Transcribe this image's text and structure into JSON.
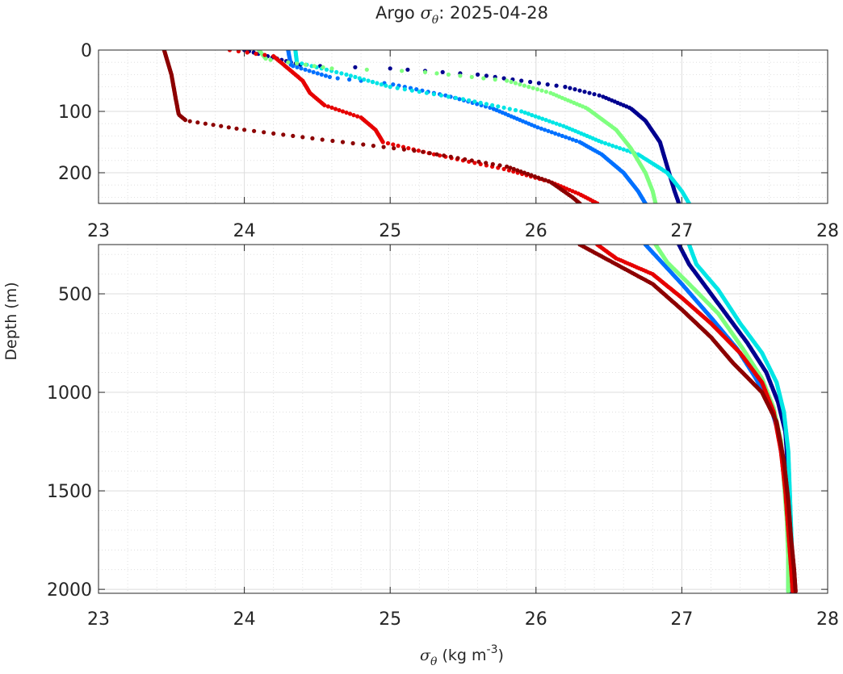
{
  "chart_data": {
    "type": "scatter",
    "title": {
      "prefix": "Argo ",
      "symbol": "σ",
      "symbol_sub": "θ",
      "suffix": ": 2025-04-28"
    },
    "xlabel": {
      "symbol": "σ",
      "symbol_sub": "θ",
      "units_pre": " (kg m",
      "units_sup": "-3",
      "units_post": ")"
    },
    "ylabel": "Depth (m)",
    "xlim": [
      23,
      28
    ],
    "x_ticks": [
      23,
      24,
      25,
      26,
      27,
      28
    ],
    "x_tick_labels": [
      "23",
      "24",
      "25",
      "26",
      "27",
      "28"
    ],
    "grid": true,
    "minor_grid": true,
    "panels": [
      {
        "name": "upper",
        "ylim": [
          0,
          250
        ],
        "y_reversed": true,
        "y_ticks": [
          0,
          100,
          200
        ],
        "y_tick_labels": [
          "0",
          "100",
          "200"
        ]
      },
      {
        "name": "lower",
        "ylim": [
          250,
          2020
        ],
        "y_reversed": true,
        "y_ticks": [
          500,
          1000,
          1500,
          2000
        ],
        "y_tick_labels": [
          "500",
          "1000",
          "1500",
          "2000"
        ]
      }
    ],
    "series": [
      {
        "color": "#00008f",
        "points": [
          [
            24.0,
            0
          ],
          [
            24.4,
            25
          ],
          [
            25.0,
            30
          ],
          [
            25.6,
            40
          ],
          [
            26.2,
            60
          ],
          [
            26.45,
            75
          ],
          [
            26.65,
            95
          ],
          [
            26.75,
            115
          ],
          [
            26.85,
            150
          ],
          [
            26.9,
            190
          ],
          [
            26.95,
            230
          ],
          [
            26.98,
            250
          ],
          [
            27.05,
            350
          ],
          [
            27.15,
            450
          ],
          [
            27.3,
            600
          ],
          [
            27.45,
            750
          ],
          [
            27.58,
            900
          ],
          [
            27.66,
            1050
          ],
          [
            27.71,
            1200
          ],
          [
            27.73,
            1400
          ],
          [
            27.74,
            1600
          ],
          [
            27.75,
            1800
          ],
          [
            27.75,
            2010
          ]
        ]
      },
      {
        "color": "#0070ff",
        "points": [
          [
            24.3,
            0
          ],
          [
            24.32,
            25
          ],
          [
            24.6,
            45
          ],
          [
            25.0,
            55
          ],
          [
            25.4,
            75
          ],
          [
            25.7,
            95
          ],
          [
            26.0,
            125
          ],
          [
            26.3,
            150
          ],
          [
            26.45,
            170
          ],
          [
            26.6,
            200
          ],
          [
            26.7,
            230
          ],
          [
            26.75,
            250
          ],
          [
            26.85,
            330
          ],
          [
            27.0,
            450
          ],
          [
            27.2,
            620
          ],
          [
            27.38,
            780
          ],
          [
            27.5,
            920
          ],
          [
            27.6,
            1050
          ],
          [
            27.66,
            1200
          ],
          [
            27.7,
            1400
          ],
          [
            27.72,
            1600
          ],
          [
            27.73,
            1800
          ],
          [
            27.73,
            2010
          ]
        ]
      },
      {
        "color": "#00e5e5",
        "points": [
          [
            24.35,
            0
          ],
          [
            24.36,
            20
          ],
          [
            24.7,
            40
          ],
          [
            25.0,
            60
          ],
          [
            25.5,
            80
          ],
          [
            25.9,
            100
          ],
          [
            26.2,
            125
          ],
          [
            26.45,
            150
          ],
          [
            26.7,
            170
          ],
          [
            26.9,
            200
          ],
          [
            27.0,
            230
          ],
          [
            27.05,
            250
          ],
          [
            27.1,
            350
          ],
          [
            27.25,
            480
          ],
          [
            27.4,
            650
          ],
          [
            27.55,
            800
          ],
          [
            27.65,
            950
          ],
          [
            27.7,
            1100
          ],
          [
            27.73,
            1300
          ],
          [
            27.74,
            1500
          ],
          [
            27.75,
            1700
          ],
          [
            27.76,
            1900
          ],
          [
            27.76,
            2010
          ]
        ]
      },
      {
        "color": "#7fff7f",
        "points": [
          [
            24.1,
            0
          ],
          [
            24.15,
            15
          ],
          [
            24.6,
            30
          ],
          [
            25.2,
            35
          ],
          [
            25.8,
            50
          ],
          [
            26.1,
            70
          ],
          [
            26.35,
            95
          ],
          [
            26.55,
            130
          ],
          [
            26.65,
            160
          ],
          [
            26.75,
            200
          ],
          [
            26.8,
            230
          ],
          [
            26.82,
            250
          ],
          [
            26.9,
            340
          ],
          [
            27.05,
            450
          ],
          [
            27.25,
            600
          ],
          [
            27.42,
            780
          ],
          [
            27.55,
            930
          ],
          [
            27.63,
            1080
          ],
          [
            27.68,
            1250
          ],
          [
            27.7,
            1450
          ],
          [
            27.72,
            1650
          ],
          [
            27.73,
            1850
          ],
          [
            27.73,
            2010
          ]
        ]
      },
      {
        "color": "#e60000",
        "points": [
          [
            23.9,
            0
          ],
          [
            24.2,
            10
          ],
          [
            24.3,
            30
          ],
          [
            24.4,
            50
          ],
          [
            24.45,
            70
          ],
          [
            24.55,
            90
          ],
          [
            24.8,
            110
          ],
          [
            24.9,
            130
          ],
          [
            24.95,
            150
          ],
          [
            25.3,
            170
          ],
          [
            25.8,
            195
          ],
          [
            26.1,
            215
          ],
          [
            26.3,
            235
          ],
          [
            26.42,
            250
          ],
          [
            26.55,
            320
          ],
          [
            26.8,
            400
          ],
          [
            27.0,
            520
          ],
          [
            27.2,
            650
          ],
          [
            27.4,
            800
          ],
          [
            27.55,
            950
          ],
          [
            27.63,
            1100
          ],
          [
            27.68,
            1300
          ],
          [
            27.71,
            1500
          ],
          [
            27.73,
            1700
          ],
          [
            27.75,
            1900
          ],
          [
            27.76,
            2010
          ]
        ]
      },
      {
        "color": "#8c0000",
        "points": [
          [
            23.45,
            0
          ],
          [
            23.5,
            40
          ],
          [
            23.53,
            80
          ],
          [
            23.55,
            105
          ],
          [
            23.6,
            115
          ],
          [
            24.0,
            130
          ],
          [
            24.5,
            145
          ],
          [
            25.2,
            165
          ],
          [
            25.8,
            190
          ],
          [
            26.1,
            215
          ],
          [
            26.25,
            240
          ],
          [
            26.3,
            250
          ],
          [
            26.5,
            330
          ],
          [
            26.8,
            450
          ],
          [
            27.0,
            580
          ],
          [
            27.2,
            720
          ],
          [
            27.35,
            850
          ],
          [
            27.55,
            1000
          ],
          [
            27.65,
            1150
          ],
          [
            27.7,
            1350
          ],
          [
            27.73,
            1550
          ],
          [
            27.75,
            1750
          ],
          [
            27.77,
            1900
          ],
          [
            27.78,
            2010
          ]
        ]
      }
    ]
  }
}
